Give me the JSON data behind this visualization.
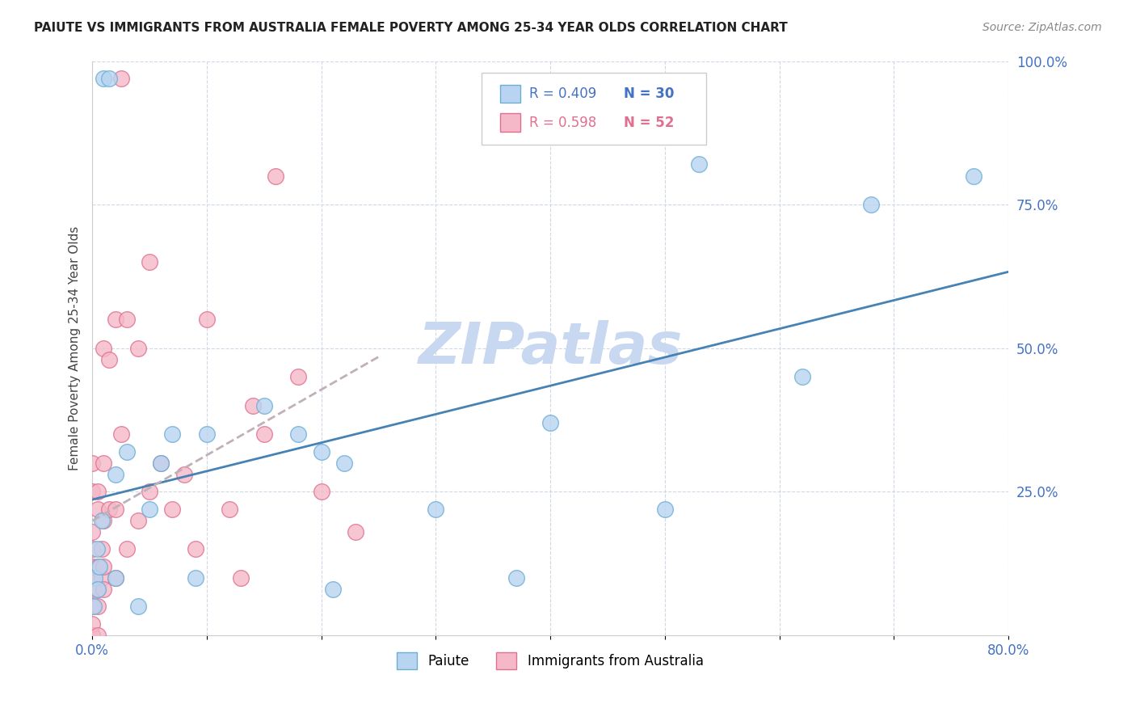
{
  "title": "PAIUTE VS IMMIGRANTS FROM AUSTRALIA FEMALE POVERTY AMONG 25-34 YEAR OLDS CORRELATION CHART",
  "source": "Source: ZipAtlas.com",
  "ylabel": "Female Poverty Among 25-34 Year Olds",
  "xlim": [
    0.0,
    0.8
  ],
  "ylim": [
    0.0,
    1.0
  ],
  "paiute_color": "#b8d4f0",
  "paiute_edge": "#6baed6",
  "australia_color": "#f5b8c8",
  "australia_edge": "#e07090",
  "trend_blue": "#4682b4",
  "trend_gray": "#c0b0b8",
  "watermark": "ZIPatlas",
  "watermark_color": "#c8d8f0",
  "legend_r1": "R = 0.409",
  "legend_n1": "N = 30",
  "legend_r2": "R = 0.598",
  "legend_n2": "N = 52",
  "paiute_x": [
    0.01,
    0.015,
    0.001,
    0.002,
    0.004,
    0.005,
    0.006,
    0.008,
    0.02,
    0.02,
    0.03,
    0.04,
    0.05,
    0.06,
    0.07,
    0.09,
    0.1,
    0.15,
    0.18,
    0.2,
    0.21,
    0.22,
    0.3,
    0.37,
    0.4,
    0.5,
    0.53,
    0.62,
    0.68,
    0.77
  ],
  "paiute_y": [
    0.97,
    0.97,
    0.05,
    0.1,
    0.15,
    0.08,
    0.12,
    0.2,
    0.1,
    0.28,
    0.32,
    0.05,
    0.22,
    0.3,
    0.35,
    0.1,
    0.35,
    0.4,
    0.35,
    0.32,
    0.08,
    0.3,
    0.22,
    0.1,
    0.37,
    0.22,
    0.82,
    0.45,
    0.75,
    0.8
  ],
  "australia_x": [
    0.025,
    0.0,
    0.0,
    0.0,
    0.0,
    0.0,
    0.0,
    0.0,
    0.0,
    0.0,
    0.0,
    0.0,
    0.0,
    0.0,
    0.005,
    0.005,
    0.005,
    0.005,
    0.005,
    0.005,
    0.008,
    0.008,
    0.01,
    0.01,
    0.01,
    0.01,
    0.01,
    0.015,
    0.015,
    0.02,
    0.02,
    0.02,
    0.025,
    0.03,
    0.03,
    0.04,
    0.04,
    0.05,
    0.05,
    0.06,
    0.07,
    0.08,
    0.09,
    0.1,
    0.12,
    0.13,
    0.14,
    0.15,
    0.16,
    0.18,
    0.2,
    0.23
  ],
  "australia_y": [
    0.97,
    0.0,
    0.0,
    0.0,
    0.0,
    0.02,
    0.05,
    0.08,
    0.1,
    0.12,
    0.15,
    0.18,
    0.25,
    0.3,
    0.0,
    0.05,
    0.08,
    0.12,
    0.22,
    0.25,
    0.1,
    0.15,
    0.08,
    0.12,
    0.2,
    0.3,
    0.5,
    0.22,
    0.48,
    0.1,
    0.22,
    0.55,
    0.35,
    0.15,
    0.55,
    0.5,
    0.2,
    0.25,
    0.65,
    0.3,
    0.22,
    0.28,
    0.15,
    0.55,
    0.22,
    0.1,
    0.4,
    0.35,
    0.8,
    0.45,
    0.25,
    0.18
  ]
}
